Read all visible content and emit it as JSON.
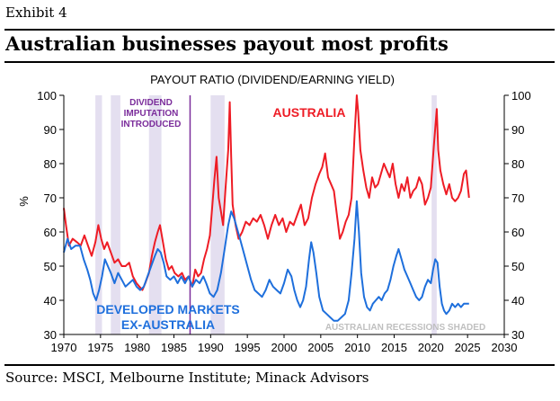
{
  "exhibit_label": "Exhibit 4",
  "headline": "Australian businesses payout most profits",
  "source": "Source: MSCI, Melbourne Institute; Minack Advisors",
  "chart_data": {
    "type": "line",
    "title": "PAYOUT RATIO (DIVIDEND/EARNING YIELD)",
    "ylabel": "%",
    "xlim": [
      1970,
      2030
    ],
    "ylim": [
      30,
      100
    ],
    "x_ticks": [
      1970,
      1975,
      1980,
      1985,
      1990,
      1995,
      2000,
      2005,
      2010,
      2015,
      2020,
      2025,
      2030
    ],
    "y_ticks": [
      30,
      40,
      50,
      60,
      70,
      80,
      90,
      100
    ],
    "grid": false,
    "recession_periods": [
      [
        1974.3,
        1975.2
      ],
      [
        1976.4,
        1977.7
      ],
      [
        1981.6,
        1983.3
      ],
      [
        1990.0,
        1991.9
      ],
      [
        2020.1,
        2020.8
      ]
    ],
    "imputation_year": 1987.2,
    "annotations": {
      "imputation_lines": [
        "DIVIDEND",
        "IMPUTATION",
        "INTRODUCED"
      ],
      "recessions_note": "AUSTRALIAN RECESSIONS SHADED"
    },
    "colors": {
      "australia": "#ee1c25",
      "developed": "#1e6fdc",
      "imputation": "#7b2d9b",
      "recession": "#e4dff0",
      "recessions_note": "#bfbfbf"
    },
    "series": [
      {
        "name": "AUSTRALIA",
        "label_lines": [
          "AUSTRALIA"
        ],
        "points": [
          [
            1970.0,
            67
          ],
          [
            1970.3,
            62
          ],
          [
            1970.7,
            56
          ],
          [
            1971.2,
            58
          ],
          [
            1971.8,
            57
          ],
          [
            1972.3,
            56
          ],
          [
            1972.8,
            59
          ],
          [
            1973.3,
            56
          ],
          [
            1973.8,
            53
          ],
          [
            1974.3,
            57
          ],
          [
            1974.7,
            62
          ],
          [
            1975.1,
            58
          ],
          [
            1975.5,
            55
          ],
          [
            1975.9,
            57
          ],
          [
            1976.4,
            54
          ],
          [
            1976.9,
            51
          ],
          [
            1977.4,
            52
          ],
          [
            1977.9,
            50
          ],
          [
            1978.4,
            50
          ],
          [
            1978.9,
            51
          ],
          [
            1979.4,
            47
          ],
          [
            1979.9,
            45
          ],
          [
            1980.3,
            44
          ],
          [
            1980.7,
            43
          ],
          [
            1981.1,
            45
          ],
          [
            1981.6,
            48
          ],
          [
            1982.0,
            53
          ],
          [
            1982.4,
            57
          ],
          [
            1982.8,
            60
          ],
          [
            1983.1,
            62
          ],
          [
            1983.5,
            57
          ],
          [
            1983.9,
            52
          ],
          [
            1984.3,
            49
          ],
          [
            1984.7,
            50
          ],
          [
            1985.1,
            48
          ],
          [
            1985.6,
            47
          ],
          [
            1986.1,
            48
          ],
          [
            1986.5,
            46
          ],
          [
            1987.0,
            47
          ],
          [
            1987.5,
            44
          ],
          [
            1987.9,
            49
          ],
          [
            1988.3,
            47
          ],
          [
            1988.7,
            48
          ],
          [
            1989.1,
            52
          ],
          [
            1989.5,
            55
          ],
          [
            1989.9,
            59
          ],
          [
            1990.2,
            67
          ],
          [
            1990.5,
            75
          ],
          [
            1990.8,
            82
          ],
          [
            1991.1,
            70
          ],
          [
            1991.4,
            66
          ],
          [
            1991.7,
            62
          ],
          [
            1992.0,
            72
          ],
          [
            1992.4,
            84
          ],
          [
            1992.6,
            98
          ],
          [
            1992.8,
            82
          ],
          [
            1993.0,
            68
          ],
          [
            1993.4,
            62
          ],
          [
            1993.8,
            58
          ],
          [
            1994.3,
            60
          ],
          [
            1994.8,
            63
          ],
          [
            1995.3,
            62
          ],
          [
            1995.8,
            64
          ],
          [
            1996.3,
            63
          ],
          [
            1996.8,
            65
          ],
          [
            1997.3,
            62
          ],
          [
            1997.8,
            58
          ],
          [
            1998.3,
            62
          ],
          [
            1998.8,
            65
          ],
          [
            1999.3,
            62
          ],
          [
            1999.8,
            64
          ],
          [
            2000.3,
            60
          ],
          [
            2000.8,
            63
          ],
          [
            2001.3,
            62
          ],
          [
            2001.8,
            65
          ],
          [
            2002.3,
            68
          ],
          [
            2002.8,
            62
          ],
          [
            2003.3,
            64
          ],
          [
            2003.8,
            70
          ],
          [
            2004.3,
            74
          ],
          [
            2004.8,
            77
          ],
          [
            2005.2,
            79
          ],
          [
            2005.6,
            83
          ],
          [
            2006.0,
            76
          ],
          [
            2006.4,
            74
          ],
          [
            2006.8,
            72
          ],
          [
            2007.2,
            65
          ],
          [
            2007.6,
            58
          ],
          [
            2008.0,
            60
          ],
          [
            2008.4,
            63
          ],
          [
            2008.8,
            65
          ],
          [
            2009.2,
            70
          ],
          [
            2009.6,
            88
          ],
          [
            2009.9,
            100
          ],
          [
            2010.1,
            95
          ],
          [
            2010.4,
            84
          ],
          [
            2010.8,
            78
          ],
          [
            2011.2,
            73
          ],
          [
            2011.6,
            70
          ],
          [
            2012.0,
            76
          ],
          [
            2012.4,
            73
          ],
          [
            2012.8,
            74
          ],
          [
            2013.2,
            77
          ],
          [
            2013.6,
            80
          ],
          [
            2014.0,
            78
          ],
          [
            2014.4,
            76
          ],
          [
            2014.8,
            80
          ],
          [
            2015.2,
            74
          ],
          [
            2015.6,
            70
          ],
          [
            2016.0,
            74
          ],
          [
            2016.4,
            72
          ],
          [
            2016.8,
            76
          ],
          [
            2017.2,
            70
          ],
          [
            2017.6,
            72
          ],
          [
            2018.0,
            73
          ],
          [
            2018.4,
            76
          ],
          [
            2018.8,
            74
          ],
          [
            2019.2,
            68
          ],
          [
            2019.6,
            70
          ],
          [
            2020.0,
            73
          ],
          [
            2020.4,
            85
          ],
          [
            2020.8,
            96
          ],
          [
            2021.0,
            84
          ],
          [
            2021.3,
            78
          ],
          [
            2021.7,
            74
          ],
          [
            2022.1,
            71
          ],
          [
            2022.5,
            74
          ],
          [
            2022.9,
            70
          ],
          [
            2023.3,
            69
          ],
          [
            2023.7,
            70
          ],
          [
            2024.1,
            72
          ],
          [
            2024.5,
            77
          ],
          [
            2024.8,
            78
          ],
          [
            2025.2,
            70
          ]
        ]
      },
      {
        "name": "DEVELOPED MARKETS EX-AUSTRALIA",
        "label_lines": [
          "DEVELOPED MARKETS",
          "EX-AUSTRALIA"
        ],
        "points": [
          [
            1970.0,
            54
          ],
          [
            1970.5,
            58
          ],
          [
            1971.0,
            55
          ],
          [
            1971.6,
            56
          ],
          [
            1972.2,
            56
          ],
          [
            1972.7,
            52
          ],
          [
            1973.2,
            49
          ],
          [
            1973.6,
            46
          ],
          [
            1974.0,
            42
          ],
          [
            1974.4,
            40
          ],
          [
            1974.8,
            43
          ],
          [
            1975.2,
            47
          ],
          [
            1975.6,
            52
          ],
          [
            1976.0,
            50
          ],
          [
            1976.4,
            48
          ],
          [
            1976.9,
            45
          ],
          [
            1977.4,
            48
          ],
          [
            1977.9,
            46
          ],
          [
            1978.4,
            44
          ],
          [
            1978.9,
            45
          ],
          [
            1979.4,
            46
          ],
          [
            1979.9,
            44
          ],
          [
            1980.4,
            43
          ],
          [
            1980.9,
            44
          ],
          [
            1981.4,
            47
          ],
          [
            1981.9,
            50
          ],
          [
            1982.4,
            53
          ],
          [
            1982.8,
            55
          ],
          [
            1983.2,
            54
          ],
          [
            1983.6,
            51
          ],
          [
            1984.0,
            47
          ],
          [
            1984.5,
            46
          ],
          [
            1985.0,
            47
          ],
          [
            1985.5,
            45
          ],
          [
            1986.0,
            47
          ],
          [
            1986.5,
            45
          ],
          [
            1987.0,
            47
          ],
          [
            1987.5,
            44
          ],
          [
            1988.0,
            46
          ],
          [
            1988.5,
            45
          ],
          [
            1989.0,
            47
          ],
          [
            1989.4,
            45
          ],
          [
            1989.9,
            42
          ],
          [
            1990.4,
            41
          ],
          [
            1990.9,
            43
          ],
          [
            1991.4,
            48
          ],
          [
            1991.9,
            55
          ],
          [
            1992.4,
            62
          ],
          [
            1992.8,
            66
          ],
          [
            1993.2,
            64
          ],
          [
            1993.6,
            61
          ],
          [
            1994.0,
            58
          ],
          [
            1994.5,
            54
          ],
          [
            1995.0,
            50
          ],
          [
            1995.5,
            46
          ],
          [
            1996.0,
            43
          ],
          [
            1996.5,
            42
          ],
          [
            1997.0,
            41
          ],
          [
            1997.5,
            43
          ],
          [
            1998.0,
            46
          ],
          [
            1998.5,
            44
          ],
          [
            1999.0,
            43
          ],
          [
            1999.5,
            42
          ],
          [
            2000.0,
            45
          ],
          [
            2000.5,
            49
          ],
          [
            2001.0,
            47
          ],
          [
            2001.4,
            43
          ],
          [
            2001.8,
            40
          ],
          [
            2002.2,
            38
          ],
          [
            2002.6,
            40
          ],
          [
            2003.0,
            44
          ],
          [
            2003.4,
            52
          ],
          [
            2003.7,
            57
          ],
          [
            2004.0,
            54
          ],
          [
            2004.4,
            48
          ],
          [
            2004.8,
            41
          ],
          [
            2005.3,
            37
          ],
          [
            2005.8,
            36
          ],
          [
            2006.3,
            35
          ],
          [
            2006.8,
            34
          ],
          [
            2007.3,
            34
          ],
          [
            2007.8,
            35
          ],
          [
            2008.3,
            36
          ],
          [
            2008.8,
            40
          ],
          [
            2009.2,
            48
          ],
          [
            2009.6,
            58
          ],
          [
            2009.9,
            69
          ],
          [
            2010.2,
            60
          ],
          [
            2010.5,
            48
          ],
          [
            2010.9,
            41
          ],
          [
            2011.3,
            38
          ],
          [
            2011.7,
            37
          ],
          [
            2012.1,
            39
          ],
          [
            2012.5,
            40
          ],
          [
            2012.9,
            41
          ],
          [
            2013.3,
            40
          ],
          [
            2013.7,
            42
          ],
          [
            2014.1,
            43
          ],
          [
            2014.5,
            46
          ],
          [
            2014.9,
            50
          ],
          [
            2015.3,
            53
          ],
          [
            2015.6,
            55
          ],
          [
            2016.0,
            52
          ],
          [
            2016.4,
            49
          ],
          [
            2016.8,
            47
          ],
          [
            2017.2,
            45
          ],
          [
            2017.6,
            43
          ],
          [
            2018.0,
            41
          ],
          [
            2018.4,
            40
          ],
          [
            2018.8,
            41
          ],
          [
            2019.2,
            44
          ],
          [
            2019.6,
            46
          ],
          [
            2020.0,
            45
          ],
          [
            2020.3,
            49
          ],
          [
            2020.6,
            52
          ],
          [
            2020.9,
            51
          ],
          [
            2021.2,
            44
          ],
          [
            2021.5,
            39
          ],
          [
            2021.8,
            37
          ],
          [
            2022.1,
            36
          ],
          [
            2022.5,
            37
          ],
          [
            2022.9,
            39
          ],
          [
            2023.3,
            38
          ],
          [
            2023.7,
            39
          ],
          [
            2024.1,
            38
          ],
          [
            2024.5,
            39
          ],
          [
            2024.9,
            39
          ],
          [
            2025.2,
            39
          ]
        ]
      }
    ]
  }
}
